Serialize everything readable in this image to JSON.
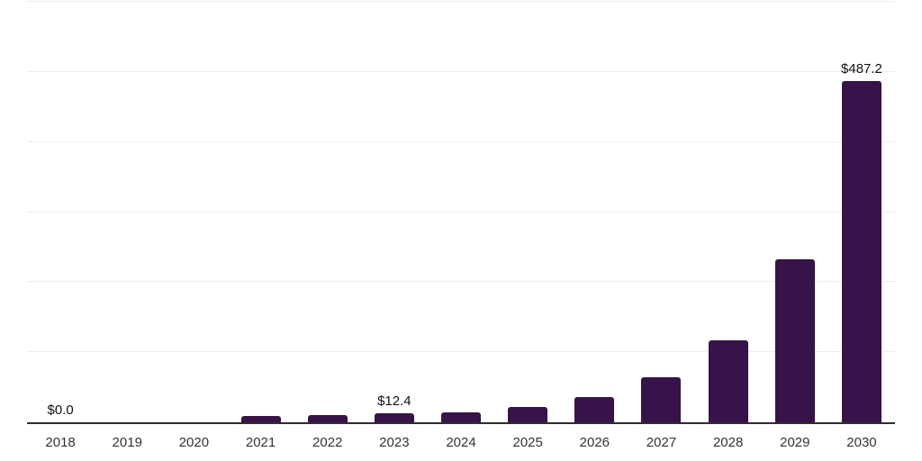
{
  "chart_data": {
    "type": "bar",
    "categories": [
      "2018",
      "2019",
      "2020",
      "2021",
      "2022",
      "2023",
      "2024",
      "2025",
      "2026",
      "2027",
      "2028",
      "2029",
      "2030"
    ],
    "values": [
      0.0,
      0.0,
      0.0,
      9.0,
      9.9,
      12.4,
      14.5,
      21.3,
      36.2,
      63.7,
      117.5,
      233.0,
      487.2
    ],
    "bar_labels": [
      "$0.0",
      "",
      "",
      "",
      "",
      "$12.4",
      "",
      "",
      "",
      "",
      "",
      "",
      "$487.2"
    ],
    "title": "",
    "xlabel": "",
    "ylabel": "",
    "ylim": [
      0,
      600
    ],
    "gridline_step": 100,
    "grid": true,
    "legend_position": "none",
    "colors": {
      "bar": "#361349",
      "gridline": "#ededed",
      "axis_line": "#2e2e2e",
      "bar_label_text": "#111111",
      "tick_label_text": "#333333",
      "background": "#ffffff"
    }
  }
}
